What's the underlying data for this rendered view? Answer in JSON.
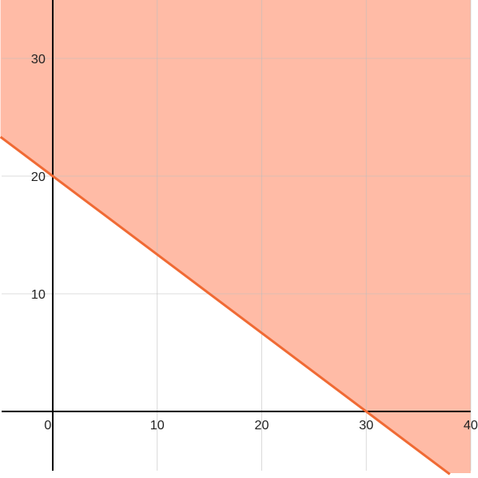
{
  "chart_data": {
    "type": "area",
    "title": "",
    "xlabel": "",
    "ylabel": "",
    "xlim": [
      -5,
      40
    ],
    "ylim": [
      -5,
      35
    ],
    "grid": true,
    "x_ticks": [
      0,
      10,
      20,
      30,
      40
    ],
    "y_ticks": [
      10,
      20,
      30
    ],
    "x_tick_labels": [
      "0",
      "10",
      "20",
      "30",
      "40"
    ],
    "y_tick_labels": [
      "10",
      "20",
      "30"
    ],
    "boundary_line": {
      "equation": "2x + 3y = 60",
      "x_intercept": 30,
      "y_intercept": 20,
      "points": [
        [
          -5,
          23.333
        ],
        [
          38,
          -5.333
        ]
      ]
    },
    "shaded_region": "2x + 3y >= 60",
    "colors": {
      "region_fill": "#ffbba6",
      "boundary_line": "#f06a34",
      "axes": "#000000",
      "grid": "#bdbdbd"
    }
  }
}
